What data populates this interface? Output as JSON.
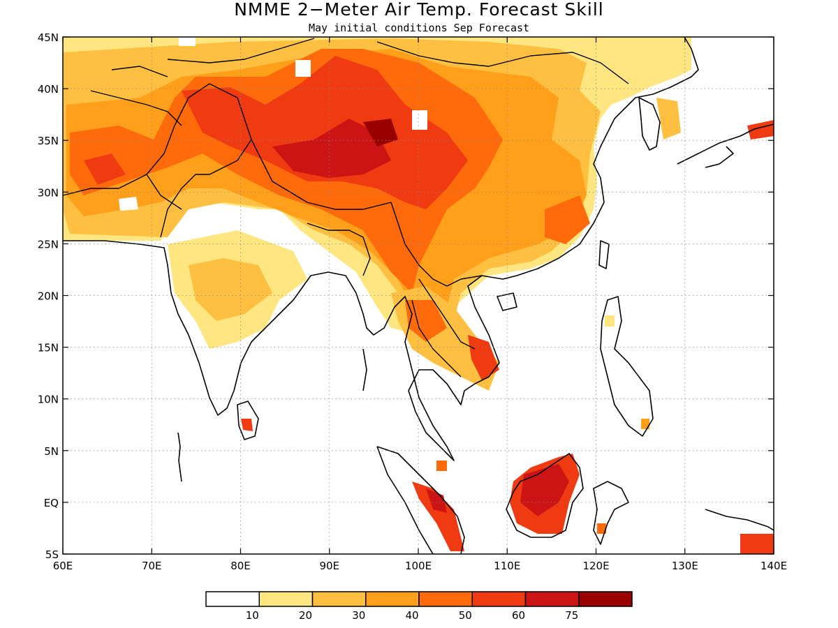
{
  "map": {
    "title": "NMME 2−Meter Air Temp. Forecast Skill",
    "subtitle": "May initial conditions  Sep Forecast",
    "lon_range": [
      60,
      140
    ],
    "lat_range": [
      -5,
      45
    ],
    "lon_ticks": [
      {
        "value": 60,
        "label": "60E"
      },
      {
        "value": 70,
        "label": "70E"
      },
      {
        "value": 80,
        "label": "80E"
      },
      {
        "value": 90,
        "label": "90E"
      },
      {
        "value": 100,
        "label": "100E"
      },
      {
        "value": 110,
        "label": "110E"
      },
      {
        "value": 120,
        "label": "120E"
      },
      {
        "value": 130,
        "label": "130E"
      },
      {
        "value": 140,
        "label": "140E"
      }
    ],
    "lat_ticks": [
      {
        "value": 45,
        "label": "45N"
      },
      {
        "value": 40,
        "label": "40N"
      },
      {
        "value": 35,
        "label": "35N"
      },
      {
        "value": 30,
        "label": "30N"
      },
      {
        "value": 25,
        "label": "25N"
      },
      {
        "value": 20,
        "label": "20N"
      },
      {
        "value": 15,
        "label": "15N"
      },
      {
        "value": 10,
        "label": "10N"
      },
      {
        "value": 5,
        "label": "5N"
      },
      {
        "value": 0,
        "label": "EQ"
      },
      {
        "value": -5,
        "label": "5S"
      }
    ],
    "grid": "dotted",
    "colorbar": {
      "colors": [
        "#ffffff",
        "#ffe680",
        "#ffbf40",
        "#ff9f1a",
        "#ff6a0a",
        "#f03a12",
        "#cc1414",
        "#990000"
      ],
      "labels": [
        "10",
        "20",
        "30",
        "40",
        "50",
        "60",
        "75"
      ]
    }
  }
}
